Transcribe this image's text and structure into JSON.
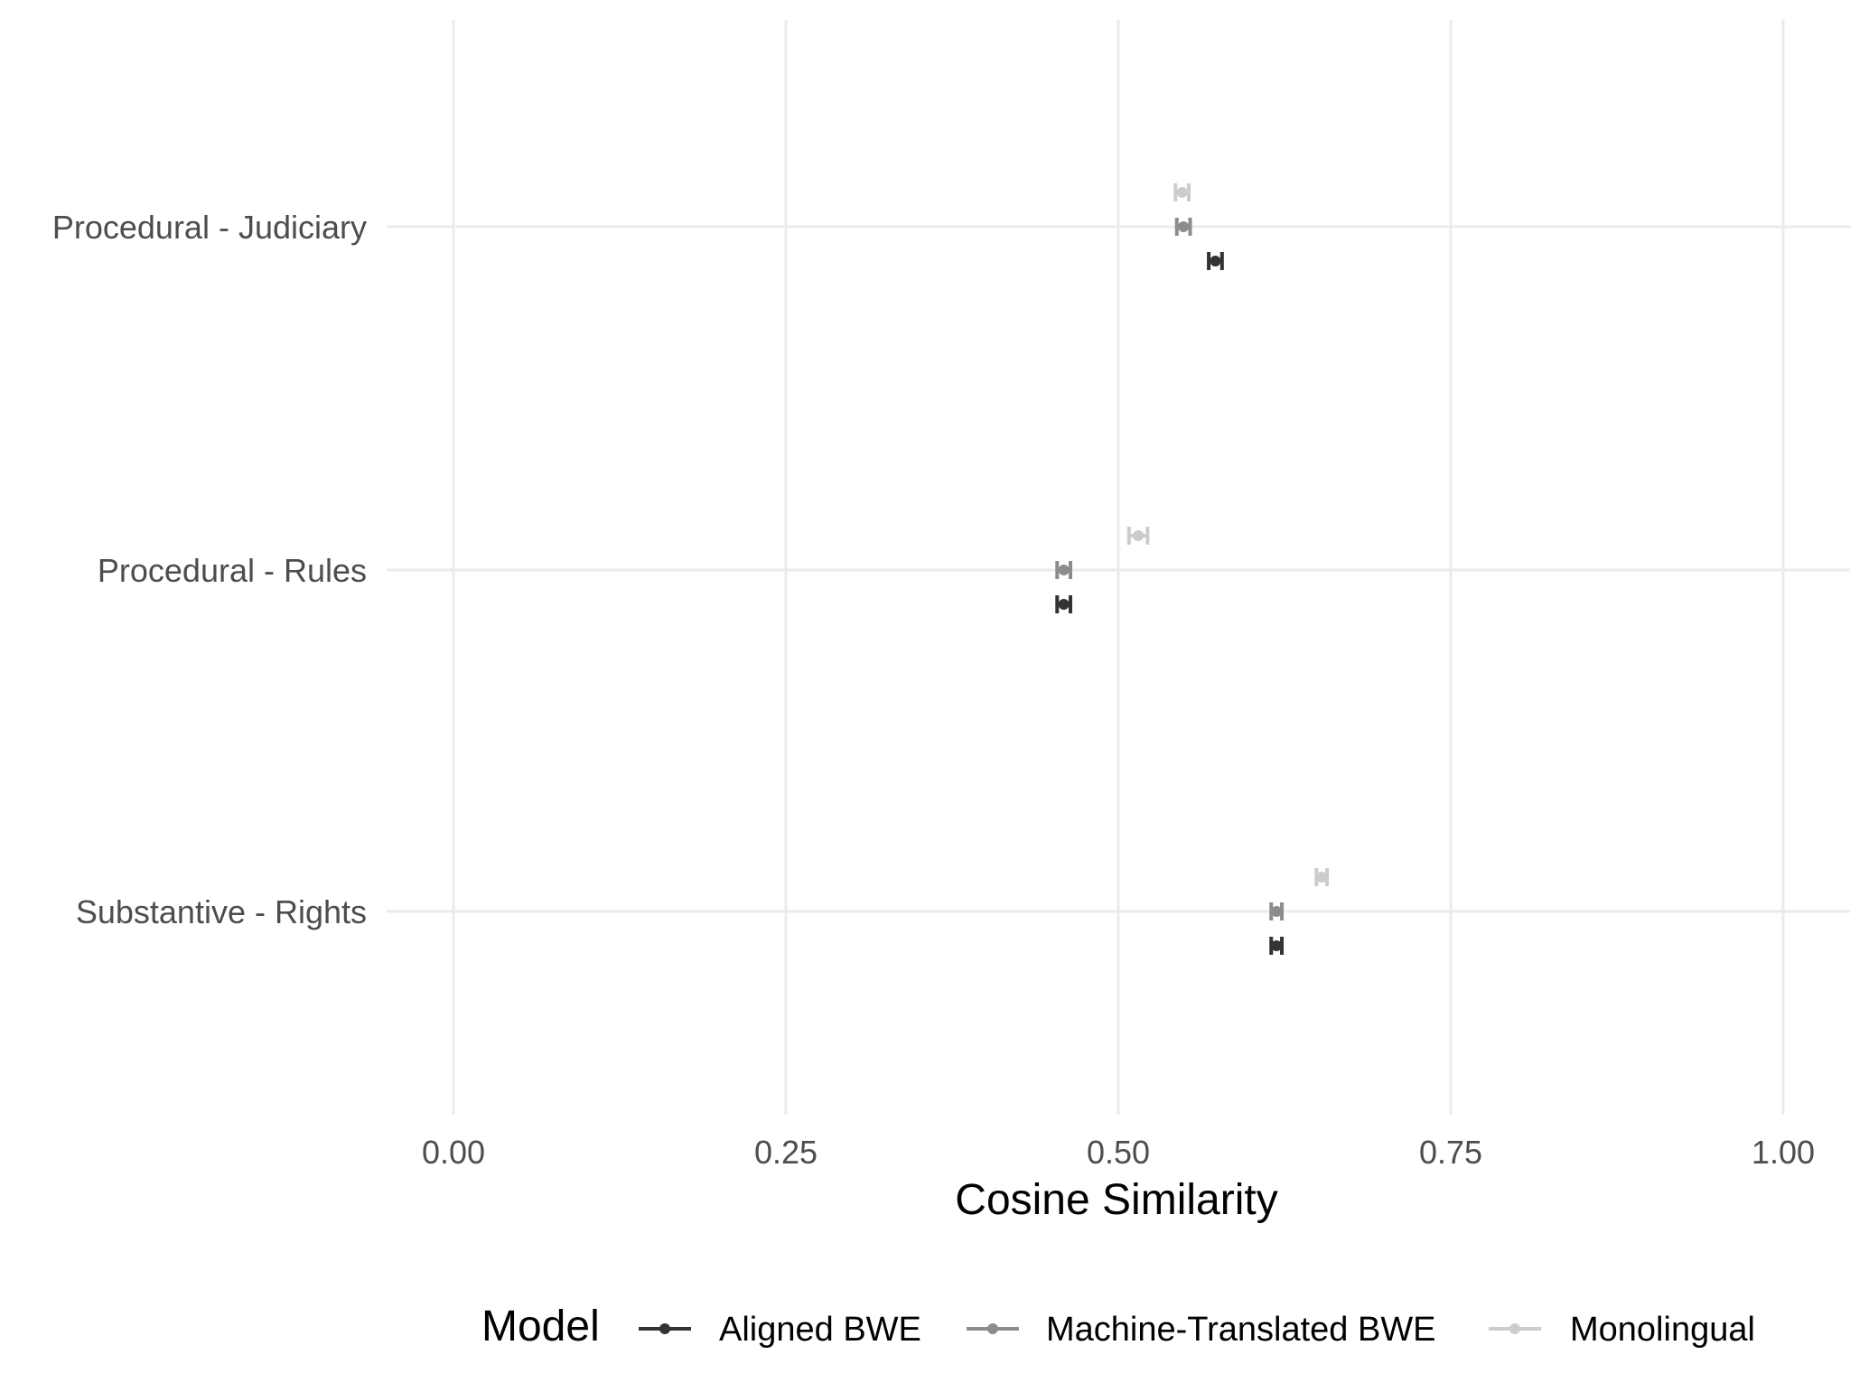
{
  "chart_data": {
    "type": "errorbar",
    "xlabel": "Cosine Similarity",
    "ylabel": "",
    "xlim": [
      0,
      1.0
    ],
    "x_ticks": [
      "0.00",
      "0.25",
      "0.50",
      "0.75",
      "1.00"
    ],
    "x_tick_values": [
      0,
      0.25,
      0.5,
      0.75,
      1.0
    ],
    "categories": [
      "Procedural - Judiciary",
      "Procedural - Rules",
      "Substantive - Rights"
    ],
    "grid": true,
    "legend": {
      "title": "Model",
      "position": "bottom",
      "entries": [
        "Aligned BWE",
        "Machine-Translated BWE",
        "Monolingual"
      ]
    },
    "series": [
      {
        "name": "Aligned BWE",
        "color": "#333333",
        "values": [
          0.573,
          0.459,
          0.619
        ],
        "lower": [
          0.568,
          0.454,
          0.615
        ],
        "upper": [
          0.578,
          0.464,
          0.623
        ]
      },
      {
        "name": "Machine-Translated BWE",
        "color": "#8c8c8c",
        "values": [
          0.549,
          0.459,
          0.619
        ],
        "lower": [
          0.544,
          0.454,
          0.615
        ],
        "upper": [
          0.554,
          0.464,
          0.623
        ]
      },
      {
        "name": "Monolingual",
        "color": "#cccccc",
        "values": [
          0.548,
          0.515,
          0.653
        ],
        "lower": [
          0.543,
          0.508,
          0.649
        ],
        "upper": [
          0.553,
          0.522,
          0.657
        ]
      }
    ]
  }
}
